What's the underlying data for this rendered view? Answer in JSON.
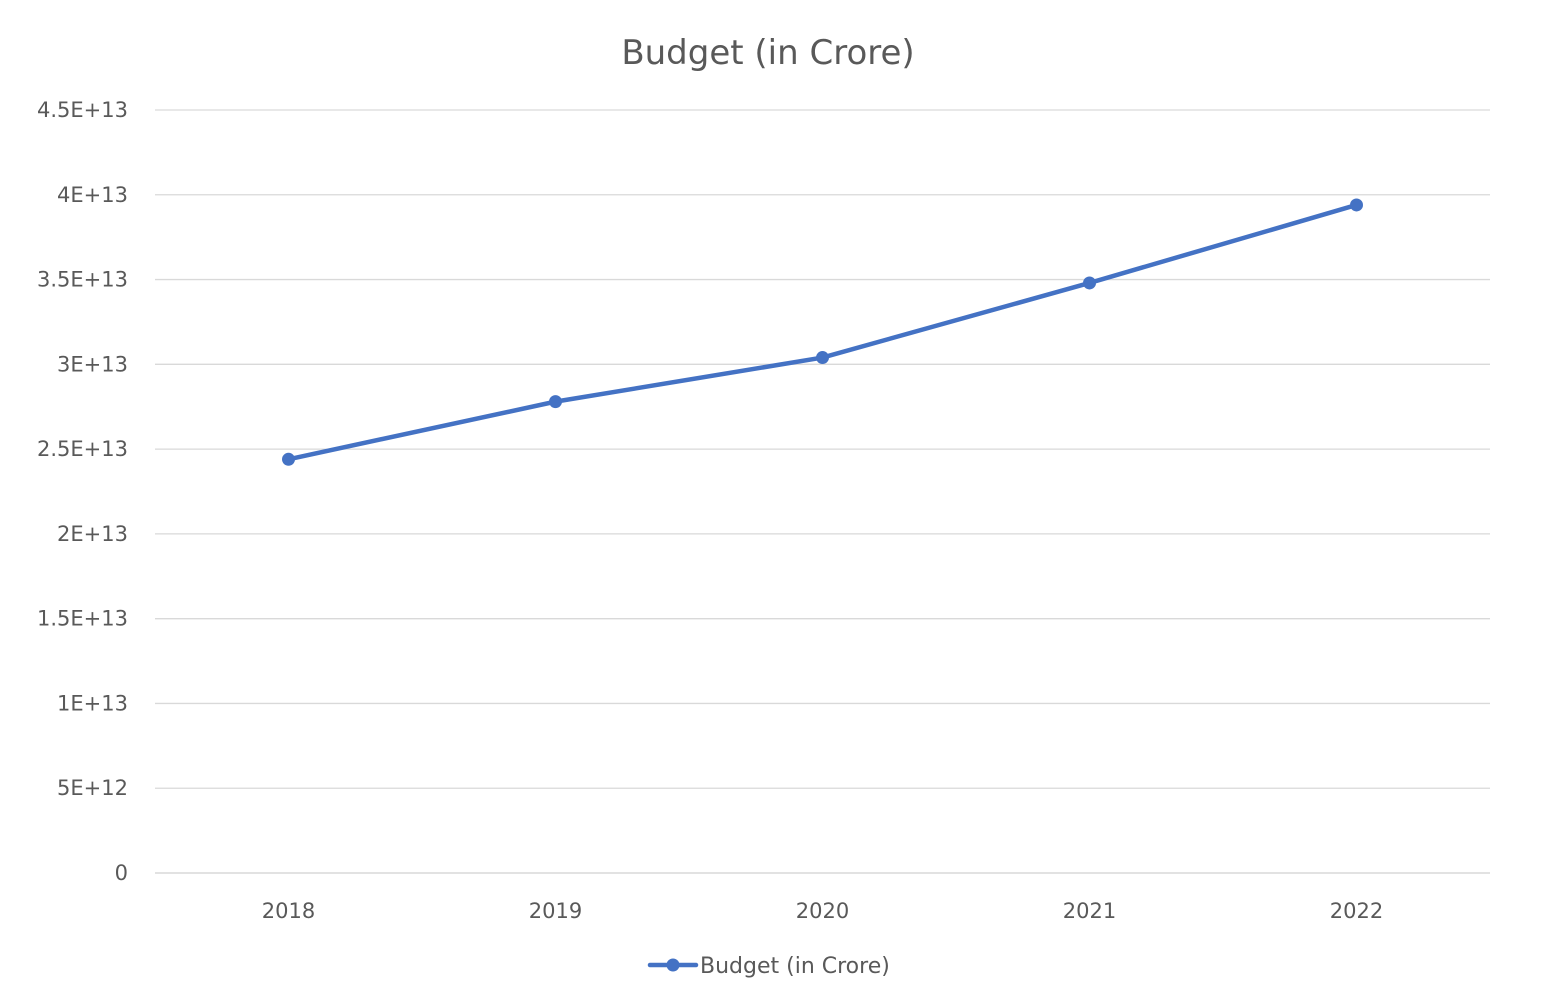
{
  "chart_data": {
    "type": "line",
    "title": "Budget (in Crore)",
    "xlabel": "",
    "ylabel": "",
    "categories": [
      "2018",
      "2019",
      "2020",
      "2021",
      "2022"
    ],
    "series": [
      {
        "name": "Budget (in Crore)",
        "values": [
          24400000000000,
          27800000000000,
          30400000000000,
          34800000000000,
          39400000000000
        ],
        "color": "#4472C4"
      }
    ],
    "ylim": [
      0,
      45000000000000
    ],
    "y_ticks": [
      {
        "value": 0,
        "label": "0"
      },
      {
        "value": 5000000000000,
        "label": "5E+12"
      },
      {
        "value": 10000000000000,
        "label": "1E+13"
      },
      {
        "value": 15000000000000,
        "label": "1.5E+13"
      },
      {
        "value": 20000000000000,
        "label": "2E+13"
      },
      {
        "value": 25000000000000,
        "label": "2.5E+13"
      },
      {
        "value": 30000000000000,
        "label": "3E+13"
      },
      {
        "value": 35000000000000,
        "label": "3.5E+13"
      },
      {
        "value": 40000000000000,
        "label": "4E+13"
      },
      {
        "value": 45000000000000,
        "label": "4.5E+13"
      }
    ],
    "grid": true,
    "legend": "bottom-center",
    "colors": {
      "gridline": "#D9D9D9",
      "text": "#595959",
      "background": "#FFFFFF"
    }
  }
}
